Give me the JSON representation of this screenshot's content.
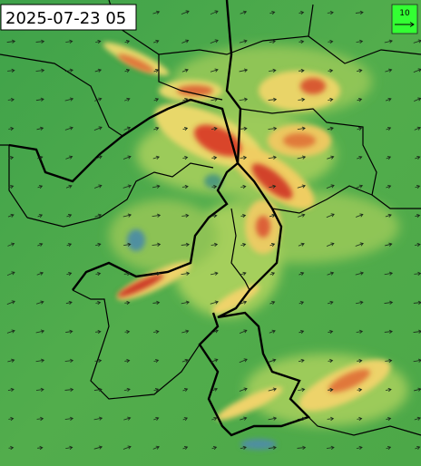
{
  "timestamp": "2025-07-23 05",
  "legend": {
    "label": "10"
  }
}
